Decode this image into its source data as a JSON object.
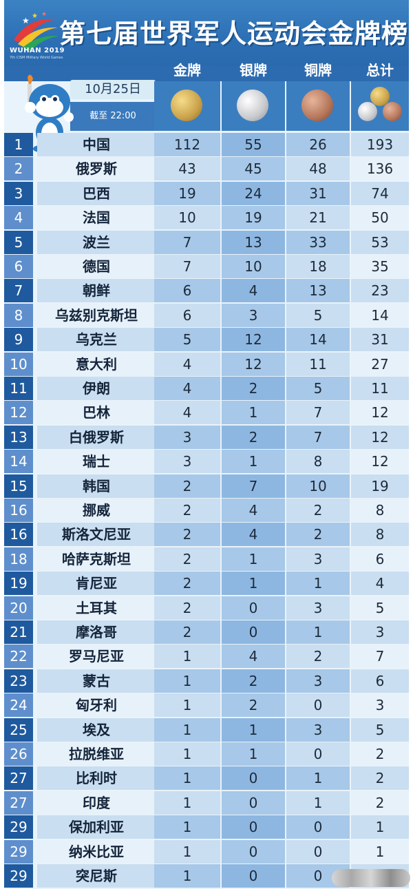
{
  "header": {
    "title": "第七届世界军人运动会金牌榜",
    "logo_text": "WUHAN 2019",
    "logo_sub": "7th CISM Military World Games",
    "date": "10月25日",
    "as_of": "截至 22:00"
  },
  "columns": {
    "gold": "金牌",
    "silver": "银牌",
    "bronze": "铜牌",
    "total": "总计"
  },
  "colors": {
    "header_blue": "#2c6fb5",
    "rank_dark": "#1f5a9e",
    "rank_light": "#5e8fcc",
    "gold_medal": "#c9a24a",
    "silver_medal": "#c7c9cc",
    "bronze_medal": "#b5765a"
  },
  "rows": [
    {
      "rank": "1",
      "country": "中国",
      "gold": "112",
      "silver": "55",
      "bronze": "26",
      "total": "193"
    },
    {
      "rank": "2",
      "country": "俄罗斯",
      "gold": "43",
      "silver": "45",
      "bronze": "48",
      "total": "136"
    },
    {
      "rank": "3",
      "country": "巴西",
      "gold": "19",
      "silver": "24",
      "bronze": "31",
      "total": "74"
    },
    {
      "rank": "4",
      "country": "法国",
      "gold": "10",
      "silver": "19",
      "bronze": "21",
      "total": "50"
    },
    {
      "rank": "5",
      "country": "波兰",
      "gold": "7",
      "silver": "13",
      "bronze": "33",
      "total": "53"
    },
    {
      "rank": "6",
      "country": "德国",
      "gold": "7",
      "silver": "10",
      "bronze": "18",
      "total": "35"
    },
    {
      "rank": "7",
      "country": "朝鲜",
      "gold": "6",
      "silver": "4",
      "bronze": "13",
      "total": "23"
    },
    {
      "rank": "8",
      "country": "乌兹别克斯坦",
      "gold": "6",
      "silver": "3",
      "bronze": "5",
      "total": "14"
    },
    {
      "rank": "9",
      "country": "乌克兰",
      "gold": "5",
      "silver": "12",
      "bronze": "14",
      "total": "31"
    },
    {
      "rank": "10",
      "country": "意大利",
      "gold": "4",
      "silver": "12",
      "bronze": "11",
      "total": "27"
    },
    {
      "rank": "11",
      "country": "伊朗",
      "gold": "4",
      "silver": "2",
      "bronze": "5",
      "total": "11"
    },
    {
      "rank": "12",
      "country": "巴林",
      "gold": "4",
      "silver": "1",
      "bronze": "7",
      "total": "12"
    },
    {
      "rank": "13",
      "country": "白俄罗斯",
      "gold": "3",
      "silver": "2",
      "bronze": "7",
      "total": "12"
    },
    {
      "rank": "14",
      "country": "瑞士",
      "gold": "3",
      "silver": "1",
      "bronze": "8",
      "total": "12"
    },
    {
      "rank": "15",
      "country": "韩国",
      "gold": "2",
      "silver": "7",
      "bronze": "10",
      "total": "19"
    },
    {
      "rank": "16",
      "country": "挪威",
      "gold": "2",
      "silver": "4",
      "bronze": "2",
      "total": "8"
    },
    {
      "rank": "16",
      "country": "斯洛文尼亚",
      "gold": "2",
      "silver": "4",
      "bronze": "2",
      "total": "8"
    },
    {
      "rank": "18",
      "country": "哈萨克斯坦",
      "gold": "2",
      "silver": "1",
      "bronze": "3",
      "total": "6"
    },
    {
      "rank": "19",
      "country": "肯尼亚",
      "gold": "2",
      "silver": "1",
      "bronze": "1",
      "total": "4"
    },
    {
      "rank": "20",
      "country": "土耳其",
      "gold": "2",
      "silver": "0",
      "bronze": "3",
      "total": "5"
    },
    {
      "rank": "21",
      "country": "摩洛哥",
      "gold": "2",
      "silver": "0",
      "bronze": "1",
      "total": "3"
    },
    {
      "rank": "22",
      "country": "罗马尼亚",
      "gold": "1",
      "silver": "4",
      "bronze": "2",
      "total": "7"
    },
    {
      "rank": "23",
      "country": "蒙古",
      "gold": "1",
      "silver": "2",
      "bronze": "3",
      "total": "6"
    },
    {
      "rank": "24",
      "country": "匈牙利",
      "gold": "1",
      "silver": "2",
      "bronze": "0",
      "total": "3"
    },
    {
      "rank": "25",
      "country": "埃及",
      "gold": "1",
      "silver": "1",
      "bronze": "3",
      "total": "5"
    },
    {
      "rank": "26",
      "country": "拉脱维亚",
      "gold": "1",
      "silver": "1",
      "bronze": "0",
      "total": "2"
    },
    {
      "rank": "27",
      "country": "比利时",
      "gold": "1",
      "silver": "0",
      "bronze": "1",
      "total": "2"
    },
    {
      "rank": "27",
      "country": "印度",
      "gold": "1",
      "silver": "0",
      "bronze": "1",
      "total": "2"
    },
    {
      "rank": "29",
      "country": "保加利亚",
      "gold": "1",
      "silver": "0",
      "bronze": "0",
      "total": "1"
    },
    {
      "rank": "29",
      "country": "纳米比亚",
      "gold": "1",
      "silver": "0",
      "bronze": "0",
      "total": "1"
    },
    {
      "rank": "29",
      "country": "突尼斯",
      "gold": "1",
      "silver": "0",
      "bronze": "0",
      "total": ""
    }
  ]
}
